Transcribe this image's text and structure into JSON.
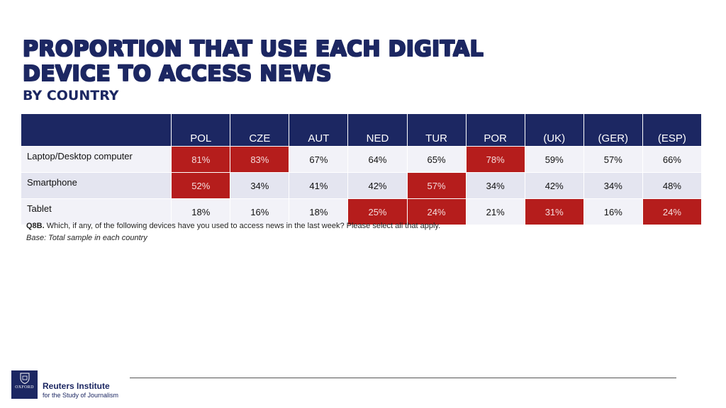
{
  "title_line1": "PROPORTION THAT USE EACH DIGITAL",
  "title_line2": "DEVICE TO ACCESS NEWS",
  "subtitle": "BY COUNTRY",
  "footnote": {
    "code": "Q8B.",
    "question": " Which, if any, of the following devices have you used to access news in the last week? Please select all that apply.",
    "base": "Base: Total sample in each country"
  },
  "footer": {
    "logo_text": "OXFORD",
    "institute": "Reuters Institute",
    "institute_sub": "for the Study of Journalism"
  },
  "colors": {
    "header_bg": "#1c2762",
    "highlight": "#b51d1c",
    "row_light": "#f2f2f8",
    "row_dark": "#e4e5f0"
  },
  "chart_data": {
    "type": "table",
    "columns": [
      "POL",
      "CZE",
      "AUT",
      "NED",
      "TUR",
      "POR",
      "(UK)",
      "(GER)",
      "(ESP)"
    ],
    "rows": [
      {
        "label": "Laptop/Desktop computer",
        "values": [
          81,
          83,
          67,
          64,
          65,
          78,
          59,
          57,
          66
        ],
        "display": [
          "81%",
          "83%",
          "67%",
          "64%",
          "65%",
          "78%",
          "59%",
          "57%",
          "66%"
        ],
        "highlight": [
          true,
          true,
          false,
          false,
          false,
          true,
          false,
          false,
          false
        ]
      },
      {
        "label": "Smartphone",
        "values": [
          52,
          34,
          41,
          42,
          57,
          34,
          42,
          34,
          48
        ],
        "display": [
          "52%",
          "34%",
          "41%",
          "42%",
          "57%",
          "34%",
          "42%",
          "34%",
          "48%"
        ],
        "highlight": [
          true,
          false,
          false,
          false,
          true,
          false,
          false,
          false,
          false
        ]
      },
      {
        "label": "Tablet",
        "values": [
          18,
          16,
          18,
          25,
          24,
          21,
          31,
          16,
          24
        ],
        "display": [
          "18%",
          "16%",
          "18%",
          "25%",
          "24%",
          "21%",
          "31%",
          "16%",
          "24%"
        ],
        "highlight": [
          false,
          false,
          false,
          true,
          true,
          false,
          true,
          false,
          true
        ]
      }
    ]
  }
}
